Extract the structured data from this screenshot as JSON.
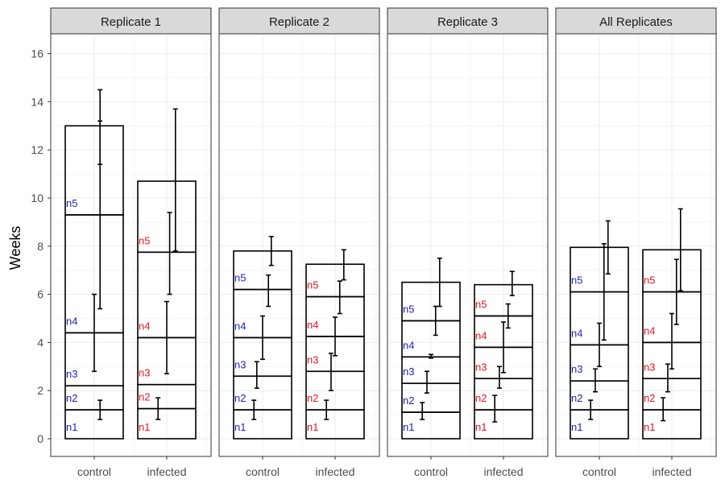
{
  "chart_data": {
    "type": "bar",
    "description_style": "faceted stacked bars with per-segment error bars",
    "ylabel": "Weeks",
    "xlabel": "",
    "ylim": [
      0,
      16.8
    ],
    "yticks": [
      0,
      2,
      4,
      6,
      8,
      10,
      12,
      14,
      16
    ],
    "grid": true,
    "categories": [
      "control",
      "infected"
    ],
    "segment_names": [
      "n1",
      "n2",
      "n3",
      "n4",
      "n5"
    ],
    "colors": {
      "control": "#1f1fb4",
      "infected": "#e0151f",
      "frame": "#333333",
      "strip_fill": "#d9d9d9",
      "grid": "#ebebeb"
    },
    "facets": [
      {
        "title": "Replicate 1",
        "bars": [
          {
            "category": "control",
            "boundaries": [
              0,
              1.2,
              2.2,
              4.4,
              9.3,
              13.0
            ],
            "errorbars": [
              {
                "x": 0.6,
                "mid": 1.2,
                "lo": 0.8,
                "hi": 1.6
              },
              {
                "x": 0.5,
                "mid": 4.4,
                "lo": 2.8,
                "hi": 6.0
              },
              {
                "x": 0.6,
                "mid": 9.3,
                "lo": 5.4,
                "hi": 13.2
              },
              {
                "x": 0.6,
                "mid": 13.0,
                "lo": 11.4,
                "hi": 14.5
              }
            ]
          },
          {
            "category": "infected",
            "boundaries": [
              0,
              1.25,
              2.25,
              4.2,
              7.75,
              10.7
            ],
            "errorbars": [
              {
                "x": 0.35,
                "mid": 1.25,
                "lo": 0.8,
                "hi": 1.7
              },
              {
                "x": 0.5,
                "mid": 4.2,
                "lo": 2.7,
                "hi": 5.7
              },
              {
                "x": 0.55,
                "mid": 7.75,
                "lo": 6.0,
                "hi": 9.4
              },
              {
                "x": 0.65,
                "mid": 10.7,
                "lo": 7.8,
                "hi": 13.7
              }
            ]
          }
        ]
      },
      {
        "title": "Replicate 2",
        "bars": [
          {
            "category": "control",
            "boundaries": [
              0,
              1.2,
              2.6,
              4.2,
              6.2,
              7.8
            ],
            "errorbars": [
              {
                "x": 0.35,
                "mid": 1.2,
                "lo": 0.8,
                "hi": 1.6
              },
              {
                "x": 0.4,
                "mid": 2.6,
                "lo": 2.1,
                "hi": 3.2
              },
              {
                "x": 0.5,
                "mid": 4.2,
                "lo": 3.3,
                "hi": 5.1
              },
              {
                "x": 0.6,
                "mid": 6.2,
                "lo": 5.5,
                "hi": 6.8
              },
              {
                "x": 0.65,
                "mid": 7.8,
                "lo": 7.2,
                "hi": 8.4
              }
            ]
          },
          {
            "category": "infected",
            "boundaries": [
              0,
              1.2,
              2.8,
              4.25,
              5.9,
              7.25
            ],
            "errorbars": [
              {
                "x": 0.35,
                "mid": 1.2,
                "lo": 0.8,
                "hi": 1.6
              },
              {
                "x": 0.43,
                "mid": 2.8,
                "lo": 2.0,
                "hi": 3.55
              },
              {
                "x": 0.5,
                "mid": 4.25,
                "lo": 3.45,
                "hi": 5.05
              },
              {
                "x": 0.58,
                "mid": 5.9,
                "lo": 5.2,
                "hi": 6.55
              },
              {
                "x": 0.65,
                "mid": 7.25,
                "lo": 6.6,
                "hi": 7.85
              }
            ]
          }
        ]
      },
      {
        "title": "Replicate 3",
        "bars": [
          {
            "category": "control",
            "boundaries": [
              0,
              1.1,
              2.3,
              3.4,
              4.9,
              6.5
            ],
            "errorbars": [
              {
                "x": 0.35,
                "mid": 1.1,
                "lo": 0.8,
                "hi": 1.5
              },
              {
                "x": 0.43,
                "mid": 2.3,
                "lo": 1.9,
                "hi": 2.8
              },
              {
                "x": 0.5,
                "mid": 3.4,
                "lo": 3.35,
                "hi": 3.5
              },
              {
                "x": 0.58,
                "mid": 4.9,
                "lo": 4.3,
                "hi": 5.5
              },
              {
                "x": 0.65,
                "mid": 6.5,
                "lo": 5.5,
                "hi": 7.5
              }
            ]
          },
          {
            "category": "infected",
            "boundaries": [
              0,
              1.2,
              2.5,
              3.8,
              5.1,
              6.4
            ],
            "errorbars": [
              {
                "x": 0.35,
                "mid": 1.2,
                "lo": 0.7,
                "hi": 1.8
              },
              {
                "x": 0.43,
                "mid": 2.5,
                "lo": 2.1,
                "hi": 3.0
              },
              {
                "x": 0.5,
                "mid": 3.8,
                "lo": 2.75,
                "hi": 4.85
              },
              {
                "x": 0.58,
                "mid": 5.1,
                "lo": 4.6,
                "hi": 5.6
              },
              {
                "x": 0.65,
                "mid": 6.4,
                "lo": 5.95,
                "hi": 6.95
              }
            ]
          }
        ]
      },
      {
        "title": "All Replicates",
        "bars": [
          {
            "category": "control",
            "boundaries": [
              0,
              1.2,
              2.4,
              3.9,
              6.1,
              7.95
            ],
            "errorbars": [
              {
                "x": 0.35,
                "mid": 1.2,
                "lo": 0.8,
                "hi": 1.6
              },
              {
                "x": 0.43,
                "mid": 2.4,
                "lo": 1.95,
                "hi": 2.9
              },
              {
                "x": 0.5,
                "mid": 3.9,
                "lo": 3.0,
                "hi": 4.8
              },
              {
                "x": 0.58,
                "mid": 6.1,
                "lo": 4.1,
                "hi": 8.1
              },
              {
                "x": 0.65,
                "mid": 7.95,
                "lo": 6.85,
                "hi": 9.05
              }
            ]
          },
          {
            "category": "infected",
            "boundaries": [
              0,
              1.2,
              2.5,
              4.0,
              6.1,
              7.85
            ],
            "errorbars": [
              {
                "x": 0.35,
                "mid": 1.2,
                "lo": 0.75,
                "hi": 1.7
              },
              {
                "x": 0.43,
                "mid": 2.5,
                "lo": 1.95,
                "hi": 3.1
              },
              {
                "x": 0.5,
                "mid": 4.0,
                "lo": 2.9,
                "hi": 5.2
              },
              {
                "x": 0.58,
                "mid": 6.1,
                "lo": 4.75,
                "hi": 7.45
              },
              {
                "x": 0.65,
                "mid": 7.85,
                "lo": 6.15,
                "hi": 9.55
              }
            ]
          }
        ]
      }
    ]
  }
}
